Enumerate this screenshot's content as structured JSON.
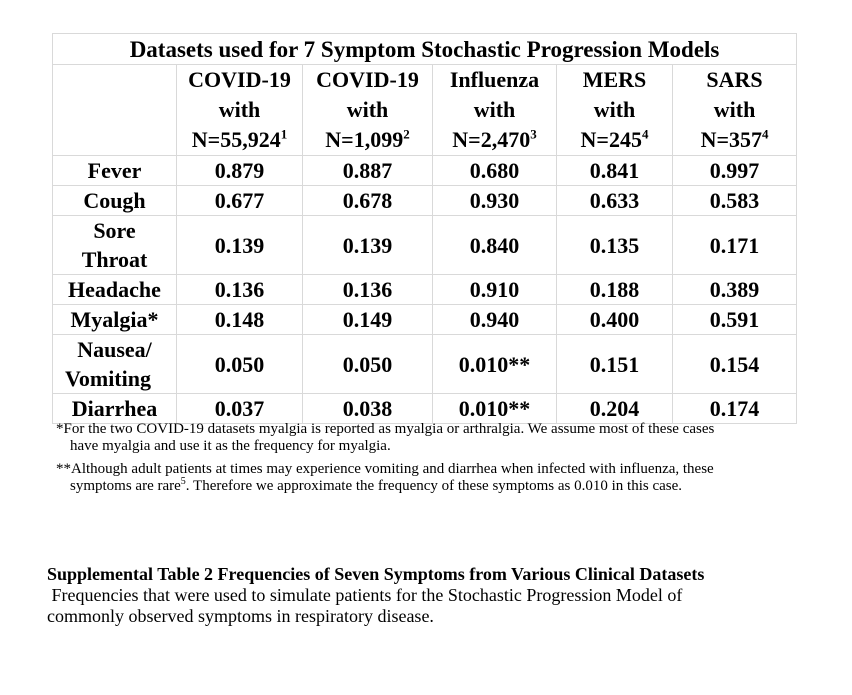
{
  "table": {
    "title": "Datasets used for 7 Symptom Stochastic Progression Models",
    "columns": [
      {
        "name": "COVID-19",
        "with": "with",
        "n": "N=55,924",
        "ref": "1"
      },
      {
        "name": "COVID-19",
        "with": "with",
        "n": "N=1,099",
        "ref": "2"
      },
      {
        "name": "Influenza",
        "with": "with",
        "n": "N=2,470",
        "ref": "3"
      },
      {
        "name": "MERS",
        "with": "with",
        "n": "N=245",
        "ref": "4"
      },
      {
        "name": "SARS",
        "with": "with",
        "n": "N=357",
        "ref": "4"
      }
    ],
    "rows": [
      {
        "label1": "Fever",
        "label2": "",
        "values": [
          "0.879",
          "0.887",
          "0.680",
          "0.841",
          "0.997"
        ]
      },
      {
        "label1": "Cough",
        "label2": "",
        "values": [
          "0.677",
          "0.678",
          "0.930",
          "0.633",
          "0.583"
        ]
      },
      {
        "label1": "Sore",
        "label2": "Throat",
        "values": [
          "0.139",
          "0.139",
          "0.840",
          "0.135",
          "0.171"
        ]
      },
      {
        "label1": "Headache",
        "label2": "",
        "values": [
          "0.136",
          "0.136",
          "0.910",
          "0.188",
          "0.389"
        ]
      },
      {
        "label1": "Myalgia*",
        "label2": "",
        "values": [
          "0.148",
          "0.149",
          "0.940",
          "0.400",
          "0.591"
        ]
      },
      {
        "label1": "Nausea/",
        "label2": "Vomiting",
        "values": [
          "0.050",
          "0.050",
          "0.010**",
          "0.151",
          "0.154"
        ]
      },
      {
        "label1": "Diarrhea",
        "label2": "",
        "values": [
          "0.037",
          "0.038",
          "0.010**",
          "0.204",
          "0.174"
        ]
      }
    ]
  },
  "footnotes": {
    "fn1_line1": "*For the two COVID-19 datasets myalgia is reported as myalgia or arthralgia. We assume most of these cases",
    "fn1_line2": "have myalgia and use it as the frequency for myalgia.",
    "fn2_line1": "**Although adult patients at times may experience vomiting and diarrhea when infected with influenza, these",
    "fn2_line2a": "symptoms are rare",
    "fn2_ref": "5",
    "fn2_line2b": ". Therefore we approximate the frequency of these symptoms as 0.010 in this case."
  },
  "caption": {
    "title": "Supplemental Table 2 Frequencies of Seven Symptoms from Various Clinical Datasets",
    "body_line1": " Frequencies that were used to simulate patients for the Stochastic Progression Model of",
    "body_line2": "commonly observed symptoms in respiratory disease."
  }
}
